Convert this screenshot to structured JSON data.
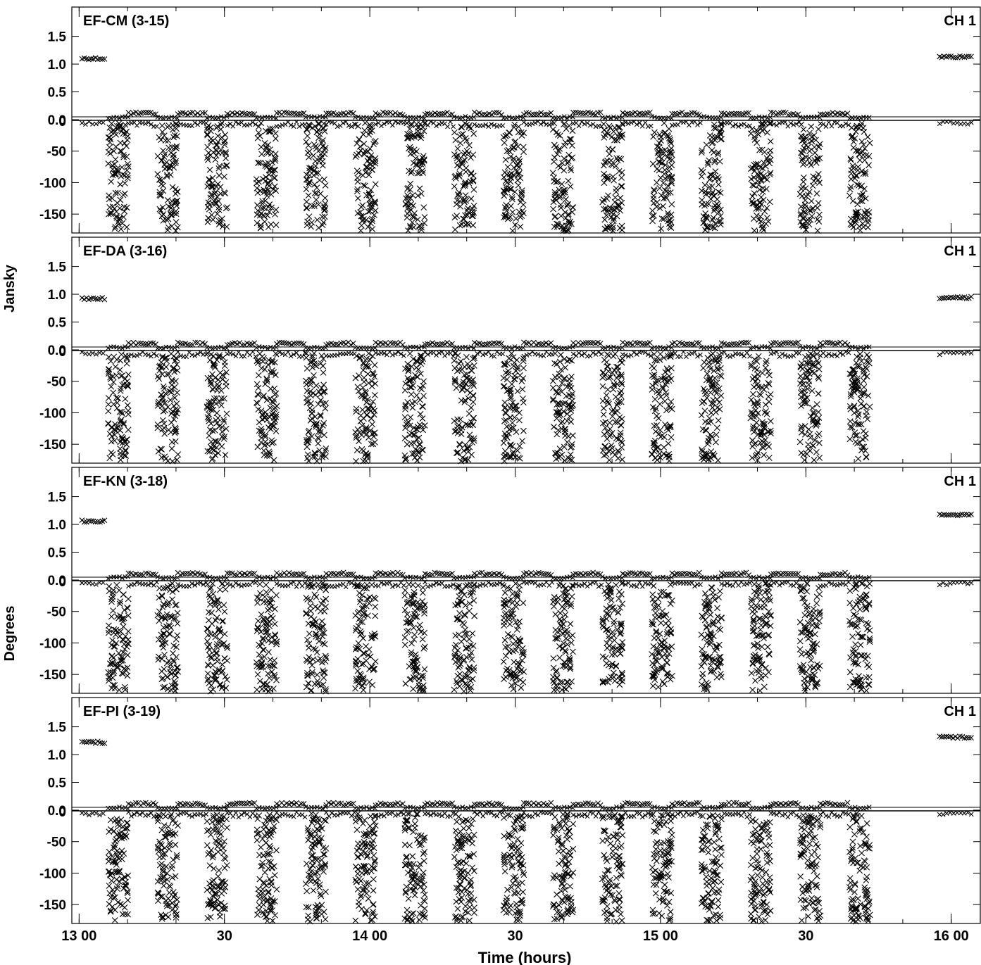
{
  "figure": {
    "ylabel_top": "Jansky",
    "ylabel_bottom": "Degrees",
    "xlabel": "Time (hours)"
  },
  "chart_data": {
    "type": "scatter",
    "xlabel": "Time (hours)",
    "x_unit": "hours",
    "xlim": [
      12.975,
      16.1
    ],
    "x_ticks": [
      {
        "value": 13.0,
        "label": "13 00"
      },
      {
        "value": 13.5,
        "label": "30"
      },
      {
        "value": 14.0,
        "label": "14 00"
      },
      {
        "value": 14.5,
        "label": "30"
      },
      {
        "value": 15.0,
        "label": "15 00"
      },
      {
        "value": 15.5,
        "label": "30"
      },
      {
        "value": 16.0,
        "label": "16 00"
      }
    ],
    "amplitude_axis": {
      "label": "Jansky",
      "ylim": [
        0,
        1.9
      ],
      "ticks": [
        "0.0",
        "0.5",
        "1.0",
        "1.5"
      ]
    },
    "phase_axis": {
      "label": "Degrees",
      "ylim": [
        -180,
        0
      ],
      "ticks": [
        "0",
        "-50",
        "-100",
        "-150"
      ]
    },
    "grid": false,
    "marker": "x",
    "scan_blocks": [
      [
        13.1,
        13.17
      ],
      [
        13.27,
        13.34
      ],
      [
        13.44,
        13.51
      ],
      [
        13.61,
        13.68
      ],
      [
        13.78,
        13.85
      ],
      [
        13.95,
        14.02
      ],
      [
        14.12,
        14.19
      ],
      [
        14.29,
        14.36
      ],
      [
        14.46,
        14.53
      ],
      [
        14.63,
        14.7
      ],
      [
        14.8,
        14.87
      ],
      [
        14.97,
        15.04
      ],
      [
        15.14,
        15.21
      ],
      [
        15.31,
        15.38
      ],
      [
        15.48,
        15.55
      ],
      [
        15.65,
        15.72
      ]
    ],
    "panels": [
      {
        "title": "EF-CM (3-15)",
        "channel": "CH 1",
        "calibrator_amplitude": [
          {
            "x": [
              13.01,
              13.09
            ],
            "y": 1.1
          },
          {
            "x": [
              15.96,
              16.07
            ],
            "y": 1.13
          }
        ],
        "target_amplitude": 0.04,
        "phase_range": [
          -180,
          0
        ]
      },
      {
        "title": "EF-DA (3-16)",
        "channel": "CH 1",
        "calibrator_amplitude": [
          {
            "x": [
              13.01,
              13.09
            ],
            "y": 0.92
          },
          {
            "x": [
              15.96,
              16.07
            ],
            "y": 0.94
          }
        ],
        "target_amplitude": 0.04,
        "phase_range": [
          -180,
          0
        ]
      },
      {
        "title": "EF-KN (3-18)",
        "channel": "CH 1",
        "calibrator_amplitude": [
          {
            "x": [
              13.01,
              13.09
            ],
            "y": 1.06
          },
          {
            "x": [
              15.96,
              16.07
            ],
            "y": 1.17
          }
        ],
        "target_amplitude": 0.04,
        "phase_range": [
          -180,
          0
        ]
      },
      {
        "title": "EF-PI (3-19)",
        "channel": "CH 1",
        "calibrator_amplitude": [
          {
            "x": [
              13.01,
              13.09
            ],
            "y": 1.22
          },
          {
            "x": [
              15.96,
              16.07
            ],
            "y": 1.31
          }
        ],
        "target_amplitude": 0.04,
        "phase_range": [
          -180,
          0
        ]
      }
    ]
  }
}
